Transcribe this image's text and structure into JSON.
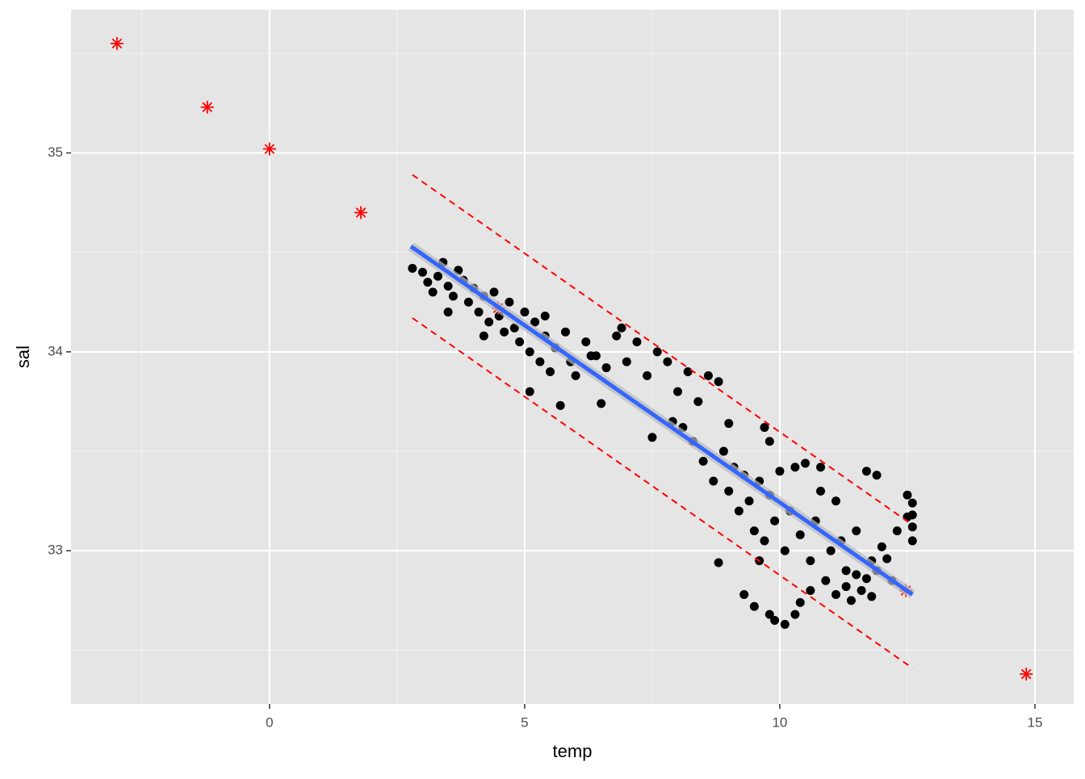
{
  "chart_data": {
    "type": "scatter",
    "xlabel": "temp",
    "ylabel": "sal",
    "xlim": [
      -3.89,
      15.76
    ],
    "ylim": [
      32.23,
      35.72
    ],
    "xticks": [
      0,
      5,
      10,
      15
    ],
    "yticks": [
      33,
      34,
      35
    ],
    "minor_xticks": [
      -2.5,
      2.5,
      7.5,
      12.5
    ],
    "minor_yticks": [
      32.5,
      33.5,
      34.5,
      35.5
    ],
    "grid": true,
    "series": [
      {
        "color": "#000000",
        "marker": "dot",
        "x": [
          2.8,
          3.0,
          3.1,
          3.2,
          3.3,
          3.4,
          3.5,
          3.6,
          3.7,
          3.8,
          3.9,
          4.0,
          4.1,
          4.2,
          4.3,
          4.4,
          4.5,
          4.6,
          4.7,
          4.8,
          4.9,
          5.0,
          5.1,
          5.2,
          5.3,
          5.4,
          5.5,
          5.6,
          5.8,
          5.9,
          6.0,
          6.2,
          6.4,
          6.6,
          6.8,
          7.0,
          7.2,
          7.4,
          7.6,
          7.8,
          8.0,
          8.2,
          8.4,
          8.6,
          8.8,
          5.1,
          5.7,
          6.5,
          7.5,
          7.9,
          8.1,
          8.3,
          8.5,
          8.7,
          8.9,
          9.0,
          9.1,
          9.2,
          9.3,
          9.4,
          9.5,
          9.6,
          9.7,
          9.8,
          9.9,
          10.0,
          10.1,
          10.2,
          10.4,
          10.5,
          10.6,
          10.7,
          10.8,
          11.0,
          11.1,
          11.3,
          11.5,
          11.7,
          11.8,
          12.0,
          12.2,
          12.3,
          8.8,
          9.3,
          9.5,
          9.6,
          9.8,
          9.9,
          10.1,
          10.3,
          10.4,
          10.6,
          10.9,
          11.1,
          11.3,
          11.4,
          11.5,
          11.6,
          11.7,
          11.8,
          11.9,
          12.1,
          12.6,
          12.6,
          12.6,
          12.6,
          12.5,
          12.5,
          11.9,
          9.0,
          9.7,
          10.3,
          9.8,
          6.3,
          6.9,
          4.2,
          3.5,
          5.4,
          10.8,
          11.2
        ],
        "values": [
          34.42,
          34.4,
          34.35,
          34.3,
          34.38,
          34.45,
          34.33,
          34.28,
          34.41,
          34.36,
          34.25,
          34.32,
          34.2,
          34.28,
          34.15,
          34.3,
          34.18,
          34.1,
          34.25,
          34.12,
          34.05,
          34.2,
          34.0,
          34.15,
          33.95,
          34.08,
          33.9,
          34.02,
          34.1,
          33.95,
          33.88,
          34.05,
          33.98,
          33.92,
          34.08,
          33.95,
          34.05,
          33.88,
          34.0,
          33.95,
          33.8,
          33.9,
          33.75,
          33.88,
          33.85,
          33.8,
          33.73,
          33.74,
          33.57,
          33.65,
          33.62,
          33.55,
          33.45,
          33.35,
          33.5,
          33.3,
          33.42,
          33.2,
          33.38,
          33.25,
          33.1,
          33.35,
          33.05,
          33.28,
          33.15,
          33.4,
          33.0,
          33.2,
          33.08,
          33.44,
          32.95,
          33.15,
          33.42,
          33.0,
          33.25,
          32.9,
          33.1,
          33.4,
          32.95,
          33.02,
          32.85,
          33.1,
          32.94,
          32.78,
          32.72,
          32.95,
          32.68,
          32.65,
          32.63,
          32.68,
          32.74,
          32.8,
          32.85,
          32.78,
          32.82,
          32.75,
          32.88,
          32.8,
          32.86,
          32.77,
          32.9,
          32.96,
          33.05,
          33.12,
          33.18,
          33.24,
          33.28,
          33.17,
          33.38,
          33.64,
          33.62,
          33.42,
          33.55,
          33.98,
          34.12,
          34.08,
          34.2,
          34.18,
          33.3,
          33.05
        ]
      },
      {
        "color": "#ff0000",
        "marker": "star",
        "x": [
          -2.99,
          -1.22,
          0,
          1.79,
          4.48,
          12.47,
          14.83
        ],
        "values": [
          35.55,
          35.23,
          35.02,
          34.7,
          34.22,
          32.8,
          32.38
        ]
      },
      {
        "color": "#3366ff",
        "marker": "line",
        "x": [
          2.77,
          12.6
        ],
        "values": [
          34.53,
          32.78
        ]
      },
      {
        "color": "#ff0000",
        "marker": "dashed",
        "x": [
          2.8,
          12.6
        ],
        "values": [
          34.89,
          33.13
        ]
      },
      {
        "color": "#ff0000",
        "marker": "dashed",
        "x": [
          2.8,
          12.6
        ],
        "values": [
          34.17,
          32.41
        ]
      }
    ]
  }
}
